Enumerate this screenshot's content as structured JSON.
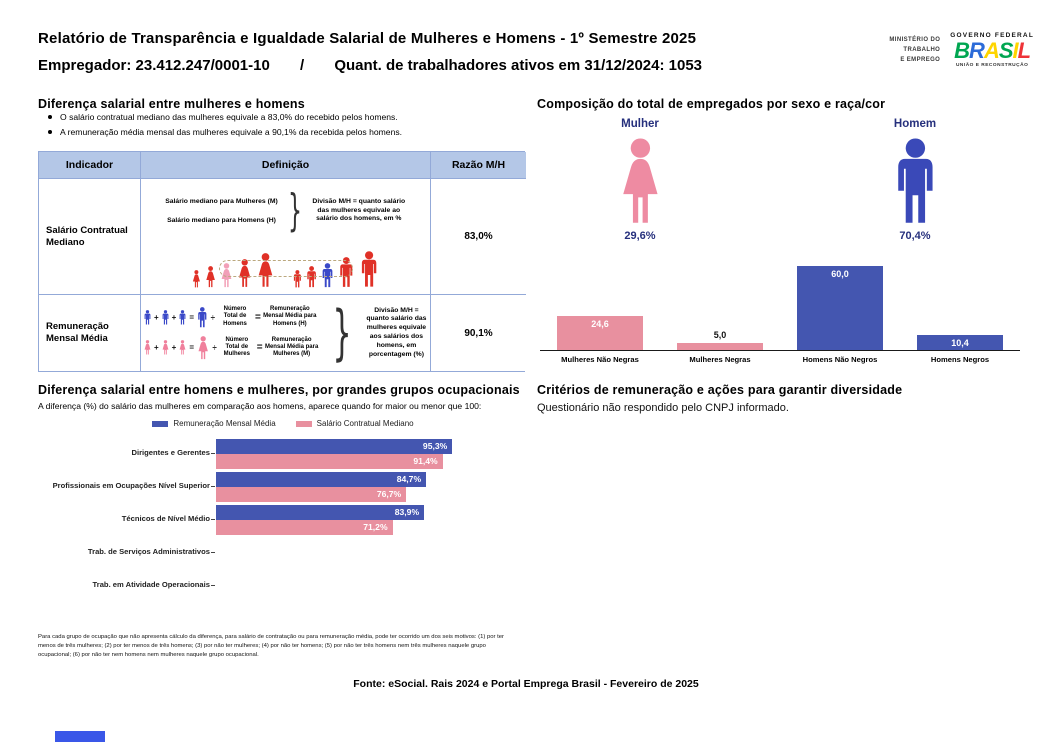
{
  "header": {
    "title": "Relatório de Transparência e Igualdade Salarial de Mulheres e Homens - 1º Semestre 2025",
    "employer": "Empregador: 23.412.247/0001-10",
    "separator": "/",
    "workers": "Quant. de trabalhadores ativos em 31/12/2024: 1053",
    "logo": {
      "ministry_lines": [
        "MINISTÉRIO DO",
        "TRABALHO",
        "E EMPREGO"
      ],
      "gov_label": "GOVERNO FEDERAL",
      "brand_letters": [
        {
          "ch": "B",
          "color": "#00a651"
        },
        {
          "ch": "R",
          "color": "#2c6bd8"
        },
        {
          "ch": "A",
          "color": "#ffd500"
        },
        {
          "ch": "S",
          "color": "#00a651"
        },
        {
          "ch": "I",
          "color": "#ffd500"
        },
        {
          "ch": "L",
          "color": "#ee3338"
        }
      ],
      "tagline": "UNIÃO E RECONSTRUÇÃO"
    }
  },
  "salary_gap": {
    "title": "Diferença salarial entre mulheres e homens",
    "bullets": [
      "O salário contratual mediano das mulheres equivale a 83,0% do recebido pelos homens.",
      "A remuneração média mensal das mulheres equivale a 90,1% da recebida pelos homens."
    ],
    "table": {
      "headers": [
        "Indicador",
        "Definição",
        "Razão M/H"
      ],
      "rows": [
        {
          "indicator": "Salário Contratual Mediano",
          "definition": {
            "line1": "Salário mediano para Mulheres (M)",
            "line2": "Salário mediano para Homens (H)",
            "note": "Divisão M/H = quanto salário das mulheres equivale ao salário dos homens, em %"
          },
          "diagram": {
            "figures": [
              {
                "g": "f",
                "h": 18,
                "c": "#e03127"
              },
              {
                "g": "f",
                "h": 22,
                "c": "#e03127"
              },
              {
                "g": "f",
                "h": 25,
                "c": "#f2a0b8"
              },
              {
                "g": "f",
                "h": 29,
                "c": "#e03127"
              },
              {
                "g": "f",
                "h": 35,
                "c": "#e03127"
              },
              {
                "g": "gap"
              },
              {
                "g": "m",
                "h": 18,
                "c": "#e03127"
              },
              {
                "g": "m",
                "h": 22,
                "c": "#e03127"
              },
              {
                "g": "m",
                "h": 25,
                "c": "#3a49c8"
              },
              {
                "g": "m",
                "h": 31,
                "c": "#e03127"
              },
              {
                "g": "m",
                "h": 37,
                "c": "#e03127"
              }
            ]
          },
          "ratio": "83,0%"
        },
        {
          "indicator": "Remuneração Mensal Média",
          "definition": {
            "note": "Divisão M/H = quanto salário das mulheres equivale aos salários dos homens, em porcentagem (%)"
          },
          "diagram": {
            "operators": {
              "plus": "+",
              "equals": "=",
              "divide": "÷"
            },
            "rows": [
              {
                "g": "m",
                "color": "#3a49c8",
                "small": 15,
                "big": 21,
                "count": "Número Total de Homens",
                "result": "Remuneração Mensal Média para Homens (H)"
              },
              {
                "g": "f",
                "color": "#f0809c",
                "small": 15,
                "big": 24,
                "count": "Número Total de Mulheres",
                "result": "Remuneração Mensal Média para Mulheres (M)"
              }
            ]
          },
          "ratio": "90,1%"
        }
      ]
    }
  },
  "composition": {
    "female": {
      "label": "Mulher",
      "value": "29,6%",
      "color": "#ee8ba2"
    },
    "male": {
      "label": "Homem",
      "value": "70,4%",
      "color": "#3a49b8"
    }
  },
  "criteria": {
    "title": "Critérios de remuneração e ações para garantir diversidade",
    "text": "Questionário não respondido pelo CNPJ informado."
  },
  "footnote": "Para cada grupo de ocupação que não apresenta cálculo da diferença, para salário de contratação ou para remuneração média, pode ter ocorrido um dos seis motivos: (1) por ter menos de três mulheres; (2) por ter menos de três homens; (3) por não ter mulheres; (4) por não ter homens; (5) por não ter três homens nem três mulheres naquele grupo ocupacional; (6) por não ter nem homens nem mulheres naquele grupo ocupacional.",
  "source": "Fonte: eSocial. Rais 2024 e Portal Emprega Brasil - Fevereiro de 2025",
  "colors": {
    "accent_blue": "#4456b0",
    "accent_pink": "#e8909f",
    "navy_text": "#26307d",
    "icon_red": "#e03127",
    "table_header_bg": "#b4c7e7",
    "table_border": "#93a9d8"
  },
  "chart_data": [
    {
      "id": "composition-by-sex-race",
      "type": "bar",
      "title": "Composição do total de empregados por sexo e raça/cor",
      "categories": [
        "Mulheres Não Negras",
        "Mulheres Negras",
        "Homens Não Negros",
        "Homens Negros"
      ],
      "values": [
        24.6,
        5.0,
        60.0,
        10.4
      ],
      "value_labels": [
        "24,6",
        "5,0",
        "60,0",
        "10,4"
      ],
      "bar_colors": [
        "#e8909f",
        "#e8909f",
        "#4456b0",
        "#4456b0"
      ],
      "label_position": [
        "inside",
        "above",
        "inside",
        "inside"
      ],
      "xlabel": "",
      "ylabel": "",
      "ylim": [
        0,
        63
      ],
      "grid": false,
      "female_share": 29.6,
      "male_share": 70.4
    },
    {
      "id": "gap-by-occupational-group",
      "type": "bar-horizontal-grouped",
      "title": "Diferença salarial entre homens e mulheres, por grandes grupos ocupacionais",
      "subtitle": "A diferença (%) do salário das mulheres em comparação aos homens, aparece quando for maior ou menor que 100:",
      "categories": [
        "Dirigentes e Gerentes",
        "Profissionais em Ocupações Nível Superior",
        "Técnicos de Nível Médio",
        "Trab. de Serviços Administrativos",
        "Trab. em Atividade Operacionais"
      ],
      "series": [
        {
          "name": "Remuneração Mensal Média",
          "color": "#4456b0",
          "values": [
            95.3,
            84.7,
            83.9,
            null,
            null
          ],
          "labels": [
            "95,3%",
            "84,7%",
            "83,9%",
            "",
            ""
          ]
        },
        {
          "name": "Salário Contratual Mediano",
          "color": "#e8909f",
          "values": [
            91.4,
            76.7,
            71.2,
            null,
            null
          ],
          "labels": [
            "91,4%",
            "76,7%",
            "71,2%",
            "",
            ""
          ]
        }
      ],
      "xlim": [
        0,
        100
      ],
      "legend_position": "top",
      "grid": false
    }
  ]
}
